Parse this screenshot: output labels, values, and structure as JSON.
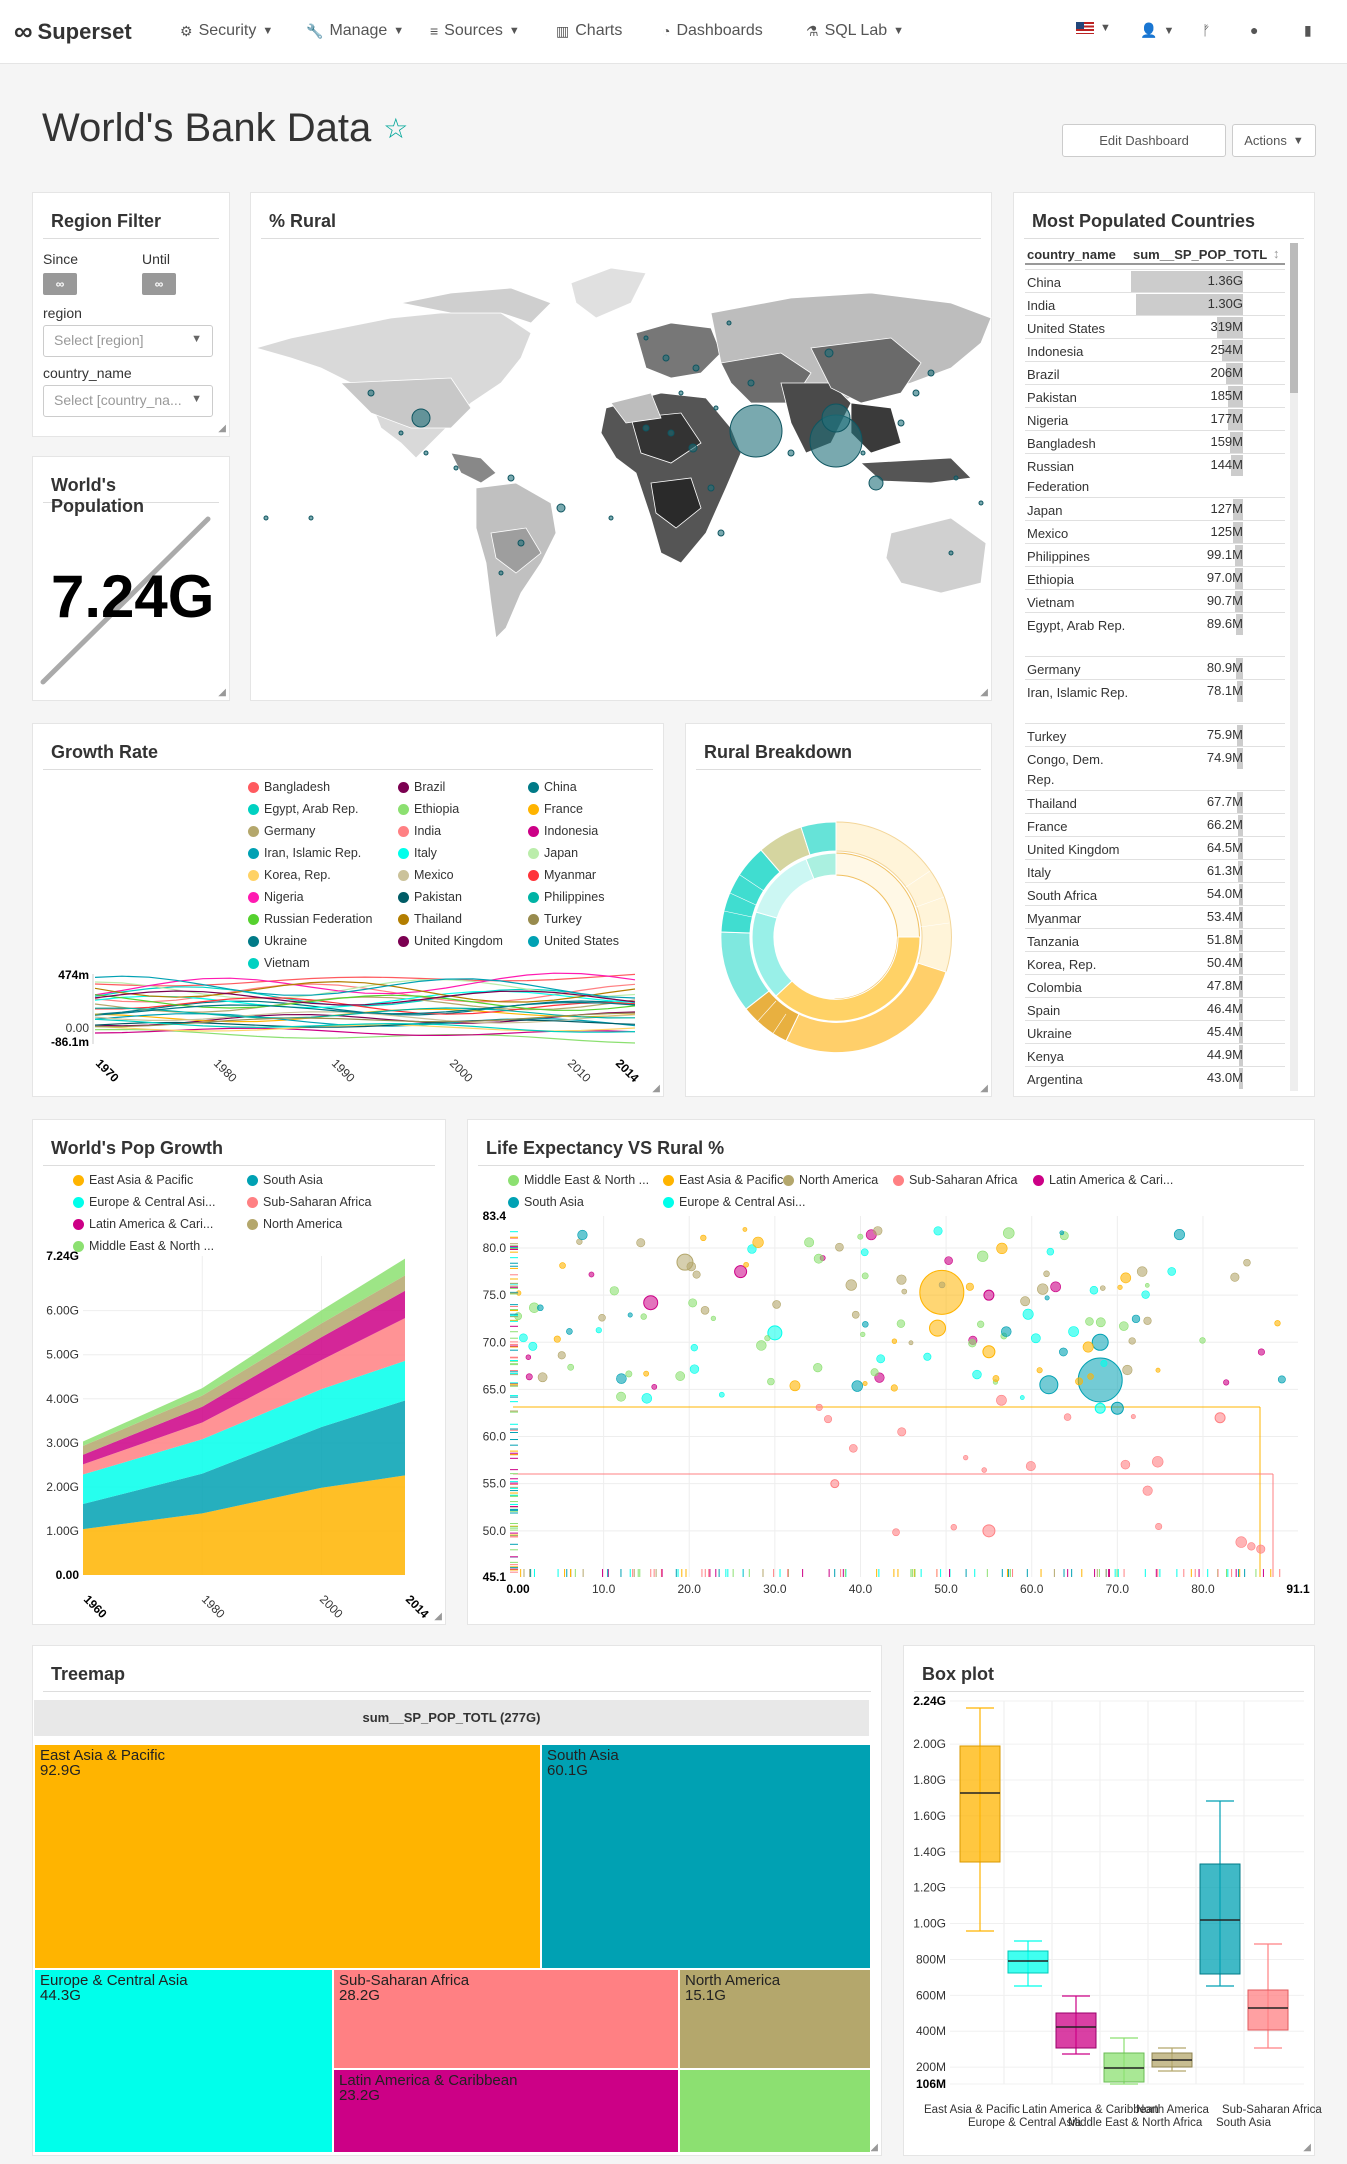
{
  "nav": {
    "brand": "Superset",
    "items": [
      {
        "label": "Security",
        "icon": "gears-icon",
        "has_caret": true
      },
      {
        "label": "Manage",
        "icon": "wrench-icon",
        "has_caret": true
      },
      {
        "label": "Sources",
        "icon": "database-icon",
        "has_caret": true
      },
      {
        "label": "Charts",
        "icon": "bar-chart-icon",
        "has_caret": false
      },
      {
        "label": "Dashboards",
        "icon": "dashboard-icon",
        "has_caret": false
      },
      {
        "label": "SQL Lab",
        "icon": "flask-icon",
        "has_caret": true
      }
    ],
    "right_icons": [
      "us-flag-icon",
      "user-icon",
      "git-branch-icon",
      "github-icon",
      "book-icon"
    ]
  },
  "dashboard": {
    "title": "World's Bank Data",
    "edit_button": "Edit Dashboard",
    "actions_button": "Actions"
  },
  "region_filter": {
    "title": "Region Filter",
    "since_label": "Since",
    "until_label": "Until",
    "toggle_symbol": "∞",
    "region_label": "region",
    "region_placeholder": "Select [region]",
    "country_label": "country_name",
    "country_placeholder": "Select [country_na..."
  },
  "rural_map": {
    "title": "% Rural"
  },
  "world_population": {
    "title": "World's Population",
    "value": "7.24G"
  },
  "top_countries": {
    "title": "Most Populated Countries",
    "columns": [
      "country_name",
      "sum__SP_POP_TOTL"
    ],
    "rows": [
      {
        "name": "China",
        "value": "1.36G",
        "fraction": 1.0
      },
      {
        "name": "India",
        "value": "1.30G",
        "fraction": 0.955
      },
      {
        "name": "United States",
        "value": "319M",
        "fraction": 0.234
      },
      {
        "name": "Indonesia",
        "value": "254M",
        "fraction": 0.187
      },
      {
        "name": "Brazil",
        "value": "206M",
        "fraction": 0.151
      },
      {
        "name": "Pakistan",
        "value": "185M",
        "fraction": 0.136
      },
      {
        "name": "Nigeria",
        "value": "177M",
        "fraction": 0.13
      },
      {
        "name": "Bangladesh",
        "value": "159M",
        "fraction": 0.117
      },
      {
        "name": "Russian Federation",
        "value": "144M",
        "fraction": 0.106
      },
      {
        "name": "Japan",
        "value": "127M",
        "fraction": 0.093
      },
      {
        "name": "Mexico",
        "value": "125M",
        "fraction": 0.092
      },
      {
        "name": "Philippines",
        "value": "99.1M",
        "fraction": 0.073
      },
      {
        "name": "Ethiopia",
        "value": "97.0M",
        "fraction": 0.071
      },
      {
        "name": "Vietnam",
        "value": "90.7M",
        "fraction": 0.067
      },
      {
        "name": "Egypt, Arab Rep.",
        "value": "89.6M",
        "fraction": 0.066
      },
      {
        "name": "Germany",
        "value": "80.9M",
        "fraction": 0.059
      },
      {
        "name": "Iran, Islamic Rep.",
        "value": "78.1M",
        "fraction": 0.057
      },
      {
        "name": "Turkey",
        "value": "75.9M",
        "fraction": 0.056
      },
      {
        "name": "Congo, Dem. Rep.",
        "value": "74.9M",
        "fraction": 0.055
      },
      {
        "name": "Thailand",
        "value": "67.7M",
        "fraction": 0.05
      },
      {
        "name": "France",
        "value": "66.2M",
        "fraction": 0.049
      },
      {
        "name": "United Kingdom",
        "value": "64.5M",
        "fraction": 0.047
      },
      {
        "name": "Italy",
        "value": "61.3M",
        "fraction": 0.045
      },
      {
        "name": "South Africa",
        "value": "54.0M",
        "fraction": 0.04
      },
      {
        "name": "Myanmar",
        "value": "53.4M",
        "fraction": 0.039
      },
      {
        "name": "Tanzania",
        "value": "51.8M",
        "fraction": 0.038
      },
      {
        "name": "Korea, Rep.",
        "value": "50.4M",
        "fraction": 0.037
      },
      {
        "name": "Colombia",
        "value": "47.8M",
        "fraction": 0.035
      },
      {
        "name": "Spain",
        "value": "46.4M",
        "fraction": 0.034
      },
      {
        "name": "Ukraine",
        "value": "45.4M",
        "fraction": 0.033
      },
      {
        "name": "Kenya",
        "value": "44.9M",
        "fraction": 0.033
      },
      {
        "name": "Argentina",
        "value": "43.0M",
        "fraction": 0.032
      }
    ]
  },
  "growth_rate": {
    "title": "Growth Rate",
    "legend": [
      {
        "name": "Bangladesh",
        "color": "#ff5a5f"
      },
      {
        "name": "Brazil",
        "color": "#7b0051"
      },
      {
        "name": "China",
        "color": "#007a87"
      },
      {
        "name": "Egypt, Arab Rep.",
        "color": "#00d1c1"
      },
      {
        "name": "Ethiopia",
        "color": "#8ce071"
      },
      {
        "name": "France",
        "color": "#ffb400"
      },
      {
        "name": "Germany",
        "color": "#b4a76c"
      },
      {
        "name": "India",
        "color": "#ff8083"
      },
      {
        "name": "Indonesia",
        "color": "#cc0086"
      },
      {
        "name": "Iran, Islamic Rep.",
        "color": "#00a1b3"
      },
      {
        "name": "Italy",
        "color": "#00ffeb"
      },
      {
        "name": "Japan",
        "color": "#bbedab"
      },
      {
        "name": "Korea, Rep.",
        "color": "#ffd266"
      },
      {
        "name": "Mexico",
        "color": "#cbc29a"
      },
      {
        "name": "Myanmar",
        "color": "#ff3339"
      },
      {
        "name": "Nigeria",
        "color": "#ff1ab1"
      },
      {
        "name": "Pakistan",
        "color": "#005c66"
      },
      {
        "name": "Philippines",
        "color": "#00b3a5"
      },
      {
        "name": "Russian Federation",
        "color": "#55d12e"
      },
      {
        "name": "Thailand",
        "color": "#b37e00"
      },
      {
        "name": "Turkey",
        "color": "#988b4e"
      },
      {
        "name": "Ukraine",
        "color": "#007a87"
      },
      {
        "name": "United Kingdom",
        "color": "#7b0051"
      },
      {
        "name": "United States",
        "color": "#00a1b3"
      },
      {
        "name": "Vietnam",
        "color": "#00d1c1"
      }
    ],
    "y_ticks": [
      "474m",
      "0.00",
      "-86.1m"
    ],
    "x_ticks": [
      "1970",
      "1980",
      "1990",
      "2000",
      "2010",
      "2014"
    ]
  },
  "rural_breakdown": {
    "title": "Rural Breakdown"
  },
  "pop_growth": {
    "title": "World's Pop Growth",
    "legend": [
      {
        "name": "East Asia & Pacific",
        "color": "#ffb400"
      },
      {
        "name": "South Asia",
        "color": "#00a1b3"
      },
      {
        "name": "Europe & Central Asi...",
        "color": "#00ffeb"
      },
      {
        "name": "Sub-Saharan Africa",
        "color": "#ff8083"
      },
      {
        "name": "Latin America & Cari...",
        "color": "#cc0086"
      },
      {
        "name": "North America",
        "color": "#b4a76c"
      },
      {
        "name": "Middle East & North ...",
        "color": "#8ce071"
      }
    ],
    "y_ticks": [
      "7.24G",
      "6.00G",
      "5.00G",
      "4.00G",
      "3.00G",
      "2.00G",
      "1.00G",
      "0.00"
    ],
    "x_ticks": [
      "1960",
      "1980",
      "2000",
      "2014"
    ]
  },
  "life_expectancy": {
    "title": "Life Expectancy VS Rural %",
    "legend": [
      {
        "name": "Middle East & North ...",
        "color": "#8ce071"
      },
      {
        "name": "East Asia & Pacific",
        "color": "#ffb400"
      },
      {
        "name": "North America",
        "color": "#b4a76c"
      },
      {
        "name": "Sub-Saharan Africa",
        "color": "#ff8083"
      },
      {
        "name": "Latin America & Cari...",
        "color": "#cc0086"
      },
      {
        "name": "South Asia",
        "color": "#00a1b3"
      },
      {
        "name": "Europe & Central Asi...",
        "color": "#00ffeb"
      }
    ],
    "y_ticks": [
      "83.4",
      "80.0",
      "75.0",
      "70.0",
      "65.0",
      "60.0",
      "55.0",
      "50.0",
      "45.1"
    ],
    "x_ticks": [
      "0.00",
      "10.0",
      "20.0",
      "30.0",
      "40.0",
      "50.0",
      "60.0",
      "70.0",
      "80.0",
      "91.1"
    ]
  },
  "treemap": {
    "title": "Treemap",
    "header": "sum__SP_POP_TOTL (277G)",
    "boxes": [
      {
        "name": "East Asia & Pacific",
        "value": "92.9G",
        "color": "#ffb400"
      },
      {
        "name": "South Asia",
        "value": "60.1G",
        "color": "#00a1b3"
      },
      {
        "name": "Europe & Central Asia",
        "value": "44.3G",
        "color": "#00ffeb"
      },
      {
        "name": "Sub-Saharan Africa",
        "value": "28.2G",
        "color": "#ff8083"
      },
      {
        "name": "North America",
        "value": "15.1G",
        "color": "#b4a76c"
      },
      {
        "name": "Latin America & Caribbean",
        "value": "23.2G",
        "color": "#cc0086"
      },
      {
        "name": "",
        "value": "",
        "color": "#8ce071"
      }
    ]
  },
  "box_plot": {
    "title": "Box plot",
    "y_ticks": [
      "2.24G",
      "2.00G",
      "1.80G",
      "1.60G",
      "1.40G",
      "1.20G",
      "1.00G",
      "800M",
      "600M",
      "400M",
      "200M",
      "106M"
    ],
    "x_labels_row1": [
      "East Asia & Pacific",
      "Latin America & Caribbean",
      "North America",
      "Sub-Saharan Africa"
    ],
    "x_labels_row2": [
      "Europe & Central Asia",
      "Middle East & North Africa",
      "South Asia"
    ]
  },
  "chart_data": [
    {
      "type": "bar",
      "title": "Most Populated Countries",
      "categories": [
        "China",
        "India",
        "United States",
        "Indonesia",
        "Brazil",
        "Pakistan",
        "Nigeria",
        "Bangladesh",
        "Russian Federation",
        "Japan"
      ],
      "values": [
        1360000000,
        1300000000,
        319000000,
        254000000,
        206000000,
        185000000,
        177000000,
        159000000,
        144000000,
        127000000
      ]
    },
    {
      "type": "area",
      "title": "World's Pop Growth",
      "x": [
        1960,
        1980,
        2000,
        2014
      ],
      "ylim": [
        0,
        7240000000
      ],
      "series": [
        {
          "name": "East Asia & Pacific",
          "values": [
            1.04,
            1.4,
            1.98,
            2.26
          ]
        },
        {
          "name": "South Asia",
          "values": [
            0.57,
            0.9,
            1.38,
            1.7
          ]
        },
        {
          "name": "Europe & Central Asi...",
          "values": [
            0.67,
            0.78,
            0.86,
            0.9
          ]
        },
        {
          "name": "Sub-Saharan Africa",
          "values": [
            0.23,
            0.38,
            0.66,
            0.97
          ]
        },
        {
          "name": "Latin America & Cari...",
          "values": [
            0.22,
            0.36,
            0.52,
            0.62
          ]
        },
        {
          "name": "North America",
          "values": [
            0.2,
            0.25,
            0.31,
            0.35
          ]
        },
        {
          "name": "Middle East & North ...",
          "values": [
            0.1,
            0.17,
            0.3,
            0.38
          ]
        }
      ]
    },
    {
      "type": "table",
      "title": "Treemap",
      "categories": [
        "East Asia & Pacific",
        "South Asia",
        "Europe & Central Asia",
        "Sub-Saharan Africa",
        "North America",
        "Latin America & Caribbean"
      ],
      "values": [
        "92.9G",
        "60.1G",
        "44.3G",
        "28.2G",
        "15.1G",
        "23.2G"
      ]
    },
    {
      "type": "scatter",
      "title": "Life Expectancy VS Rural %",
      "xlim": [
        0,
        91.1
      ],
      "ylim": [
        45.1,
        83.4
      ]
    }
  ]
}
